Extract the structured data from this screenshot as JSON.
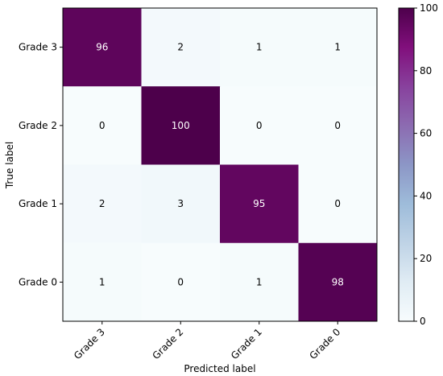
{
  "chart_data": {
    "type": "heatmap",
    "title": "",
    "xlabel": "Predicted label",
    "ylabel": "True label",
    "x_categories": [
      "Grade 3",
      "Grade 2",
      "Grade 1",
      "Grade 0"
    ],
    "y_categories": [
      "Grade 3",
      "Grade 2",
      "Grade 1",
      "Grade 0"
    ],
    "values": [
      [
        96,
        2,
        1,
        1
      ],
      [
        0,
        100,
        0,
        0
      ],
      [
        2,
        3,
        95,
        0
      ],
      [
        1,
        0,
        1,
        98
      ]
    ],
    "colorbar": {
      "range": [
        0,
        100
      ],
      "ticks": [
        "0",
        "20",
        "40",
        "60",
        "80",
        "100"
      ],
      "colormap": "BuPu",
      "colormap_stops": [
        "#f7fcfd",
        "#e0ecf4",
        "#bfd3e6",
        "#9ebcda",
        "#8c96c6",
        "#8c6bb1",
        "#88419d",
        "#810f7c",
        "#4d004b"
      ]
    },
    "text_colors": {
      "light_cells": "#000000",
      "dark_cells": "#ffffff"
    }
  }
}
